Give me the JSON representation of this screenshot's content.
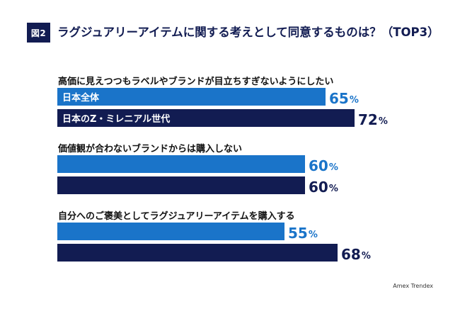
{
  "figure_badge": "図2",
  "chart_data": {
    "type": "bar",
    "orientation": "horizontal",
    "title": "ラグジュアリーアイテムに関する考えとして同意するものは？（TOP3）",
    "unit": "%",
    "series": [
      {
        "name": "日本全体",
        "color": "#1a74c9"
      },
      {
        "name": "日本のZ・ミレニアル世代",
        "color": "#121c52"
      }
    ],
    "groups": [
      {
        "label": "高価に見えつつもラベルやブランドが目立ちすぎないようにしたい",
        "values": [
          65,
          72
        ]
      },
      {
        "label": "価値観が合わないブランドからは購入しない",
        "values": [
          60,
          60
        ]
      },
      {
        "label": "自分へのご褒美としてラグジュアリーアイテムを購入する",
        "values": [
          55,
          68
        ]
      }
    ],
    "value_suffix": "%"
  },
  "source": "Amex Trendex"
}
